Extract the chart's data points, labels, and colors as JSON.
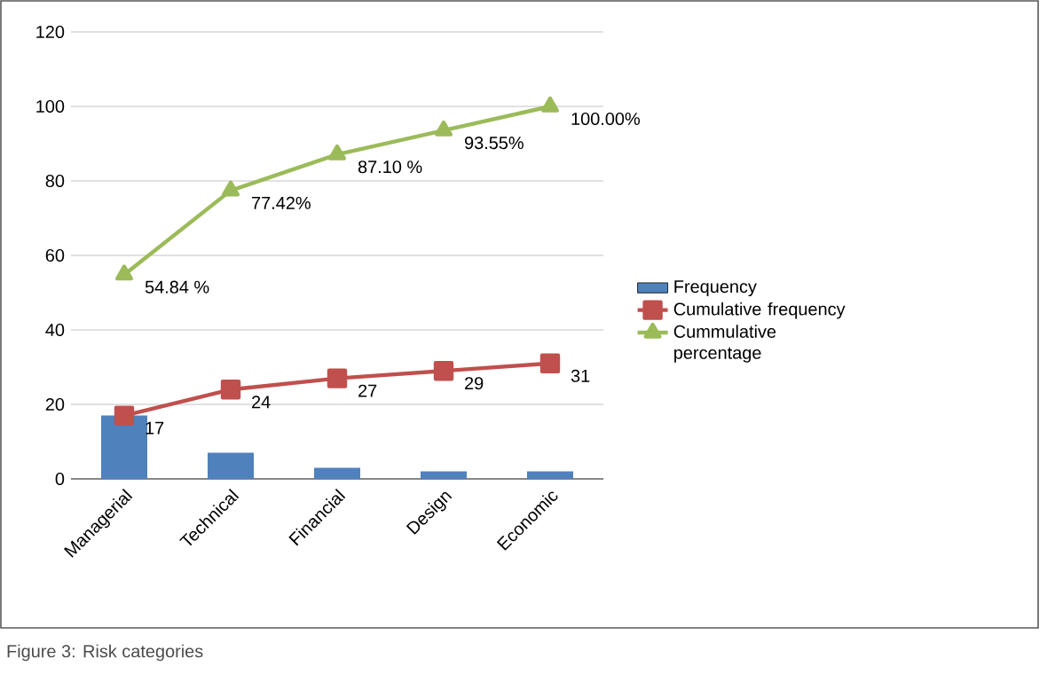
{
  "chart_data": {
    "type": "bar",
    "categories": [
      "Managerial",
      "Technical",
      "Financial",
      "Design",
      "Economic"
    ],
    "series": [
      {
        "name": "Frequency",
        "color": "#4f81bd",
        "values": [
          17,
          7,
          3,
          2,
          2
        ]
      },
      {
        "name": "Cumulative frequency",
        "type": "line",
        "color": "#c0504d",
        "marker": "square",
        "values": [
          17,
          24,
          27,
          29,
          31
        ],
        "value_labels": [
          "17",
          "24",
          "27",
          "29",
          "31"
        ]
      },
      {
        "name": "Cummulative percentage",
        "type": "line",
        "color": "#9bbb59",
        "marker": "triangle",
        "values": [
          54.84,
          77.42,
          87.1,
          93.55,
          100
        ],
        "value_labels": [
          "54.84 %",
          "77.42%",
          "87.10 %",
          "93.55%",
          "100.00%"
        ]
      }
    ],
    "ylim": [
      0,
      120
    ],
    "yticks": [
      0,
      20,
      40,
      60,
      80,
      100,
      120
    ],
    "grid": "y",
    "legend": "right",
    "annotations": [
      "Figure 3:    Risk categories"
    ]
  }
}
